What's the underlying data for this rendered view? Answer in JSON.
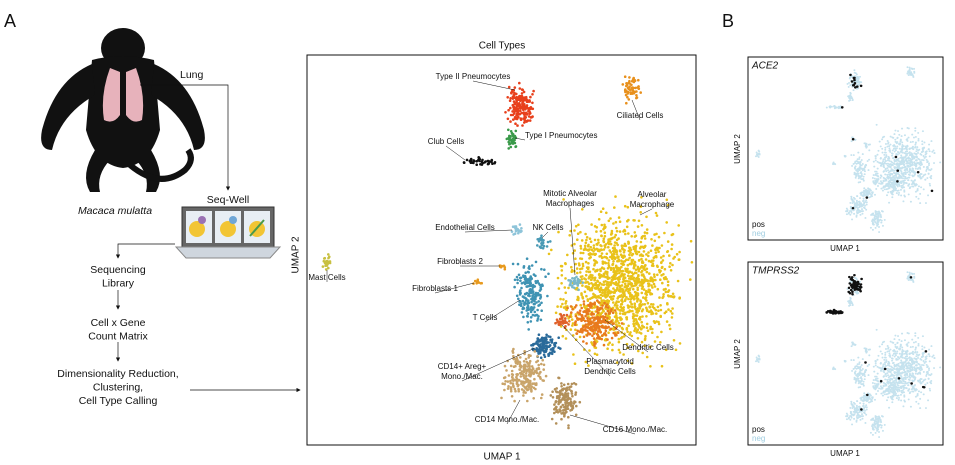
{
  "panel_a": {
    "label": "A",
    "organ": "Lung",
    "device": "Seq-Well",
    "species": "Macaca mulatta",
    "steps": [
      [
        "Sequencing",
        "Library"
      ],
      [
        "Cell x Gene",
        "Count Matrix"
      ],
      [
        "Dimensionality Reduction,",
        "Clustering,",
        "Cell Type Calling"
      ]
    ],
    "umap": {
      "title": "Cell Types",
      "x_label": "UMAP 1",
      "y_label": "UMAP 2",
      "clusters": [
        [
          "Type II Pneumocytes"
        ],
        [
          "Ciliated Cells"
        ],
        [
          "Type I Pneumocytes"
        ],
        [
          "Club Cells"
        ],
        [
          "Mitotic Alveolar",
          "Macrophages"
        ],
        [
          "Alveolar",
          "Macrophage"
        ],
        [
          "Endothelial Cells"
        ],
        [
          "NK Cells"
        ],
        [
          "Fibroblasts 2"
        ],
        [
          "Mast Cells"
        ],
        [
          "Fibroblasts 1"
        ],
        [
          "T Cells"
        ],
        [
          "Dendritic Cells"
        ],
        [
          "Plasmacytoid",
          "Dendritic Cells"
        ],
        [
          "CD14+ Areg+",
          "Mono./Mac."
        ],
        [
          "CD14 Mono./Mac."
        ],
        [
          "CD16 Mono./Mac."
        ]
      ]
    }
  },
  "panel_b": {
    "label": "B",
    "plots": [
      {
        "gene": "ACE2",
        "pos": "pos",
        "neg": "neg",
        "x_label": "UMAP 1",
        "y_label": "UMAP 2"
      },
      {
        "gene": "TMPRSS2",
        "pos": "pos",
        "neg": "neg",
        "x_label": "UMAP 1",
        "y_label": "UMAP 2"
      }
    ]
  }
}
